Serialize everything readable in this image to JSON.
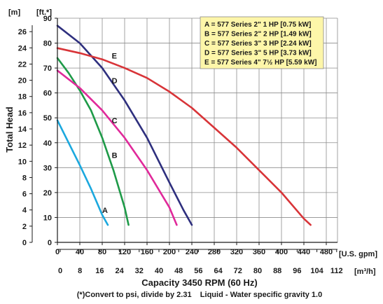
{
  "chart_data": {
    "type": "line",
    "title": "",
    "ylabel": "Total Head",
    "y_unit_left": "[m]",
    "y_unit_right": "[ft.*]",
    "xlabel": "Capacity 3450 RPM (60 Hz)",
    "x_unit_primary": "[U.S. gpm]",
    "x_unit_secondary": "[m³/h]",
    "footnote": "(*)Convert to psi, divide by 2.31    Liquid - Water specific gravity 1.0",
    "xlim": [
      0,
      500
    ],
    "ylim": [
      0,
      90
    ],
    "grid": true,
    "legend_position": "top-right",
    "x_ticks": [
      "0",
      "40",
      "80",
      "120",
      "160",
      "200",
      "240",
      "280",
      "320",
      "360",
      "400",
      "440",
      "480"
    ],
    "x_ticks_m3h": [
      "0",
      "8",
      "16",
      "24",
      "32",
      "40",
      "48",
      "56",
      "64",
      "72",
      "80",
      "88",
      "96",
      "104",
      "112"
    ],
    "y_ticks_ft": [
      "0",
      "10",
      "20",
      "30",
      "40",
      "50",
      "60",
      "70",
      "80",
      "90"
    ],
    "y_ticks_m": [
      "0",
      "2",
      "4",
      "6",
      "8",
      "10",
      "12",
      "14",
      "16",
      "18",
      "20",
      "22",
      "24",
      "26"
    ],
    "legend": [
      "A = 577 Series 2\" 1 HP [0.75 kW]",
      "B = 577 Series 2\" 2 HP [1.49 kW]",
      "C = 577 Series 3\" 3 HP [2.24 kW]",
      "D = 577 Series 3\" 5 HP [3.73 kW]",
      "E = 577 Series 4\" 7½ HP [5.59 kW]"
    ],
    "series": [
      {
        "name": "A",
        "color": "#1ba8de",
        "label_at": [
          80,
          13
        ],
        "x": [
          0,
          20,
          40,
          60,
          80,
          90
        ],
        "y": [
          49,
          40,
          31,
          21.5,
          11,
          7
        ]
      },
      {
        "name": "B",
        "color": "#1e9a48",
        "label_at": [
          97,
          35
        ],
        "x": [
          0,
          20,
          40,
          60,
          80,
          100,
          120,
          127
        ],
        "y": [
          74,
          68,
          61,
          53,
          42,
          29,
          14,
          7
        ]
      },
      {
        "name": "C",
        "color": "#e0299a",
        "label_at": [
          97,
          49
        ],
        "x": [
          0,
          40,
          80,
          120,
          160,
          200,
          213
        ],
        "y": [
          69,
          62,
          53,
          42,
          29,
          14,
          7
        ]
      },
      {
        "name": "D",
        "color": "#2e2f7e",
        "label_at": [
          97,
          65
        ],
        "x": [
          0,
          40,
          80,
          120,
          160,
          200,
          225,
          240
        ],
        "y": [
          87,
          80,
          70,
          57,
          42,
          24,
          13,
          7
        ]
      },
      {
        "name": "E",
        "color": "#d83438",
        "label_at": [
          97,
          75
        ],
        "x": [
          0,
          40,
          80,
          120,
          160,
          200,
          240,
          280,
          320,
          360,
          400,
          440,
          452
        ],
        "y": [
          78,
          76,
          73.5,
          70,
          66,
          60.5,
          54,
          46,
          38,
          29,
          20,
          9.5,
          7
        ]
      }
    ]
  }
}
